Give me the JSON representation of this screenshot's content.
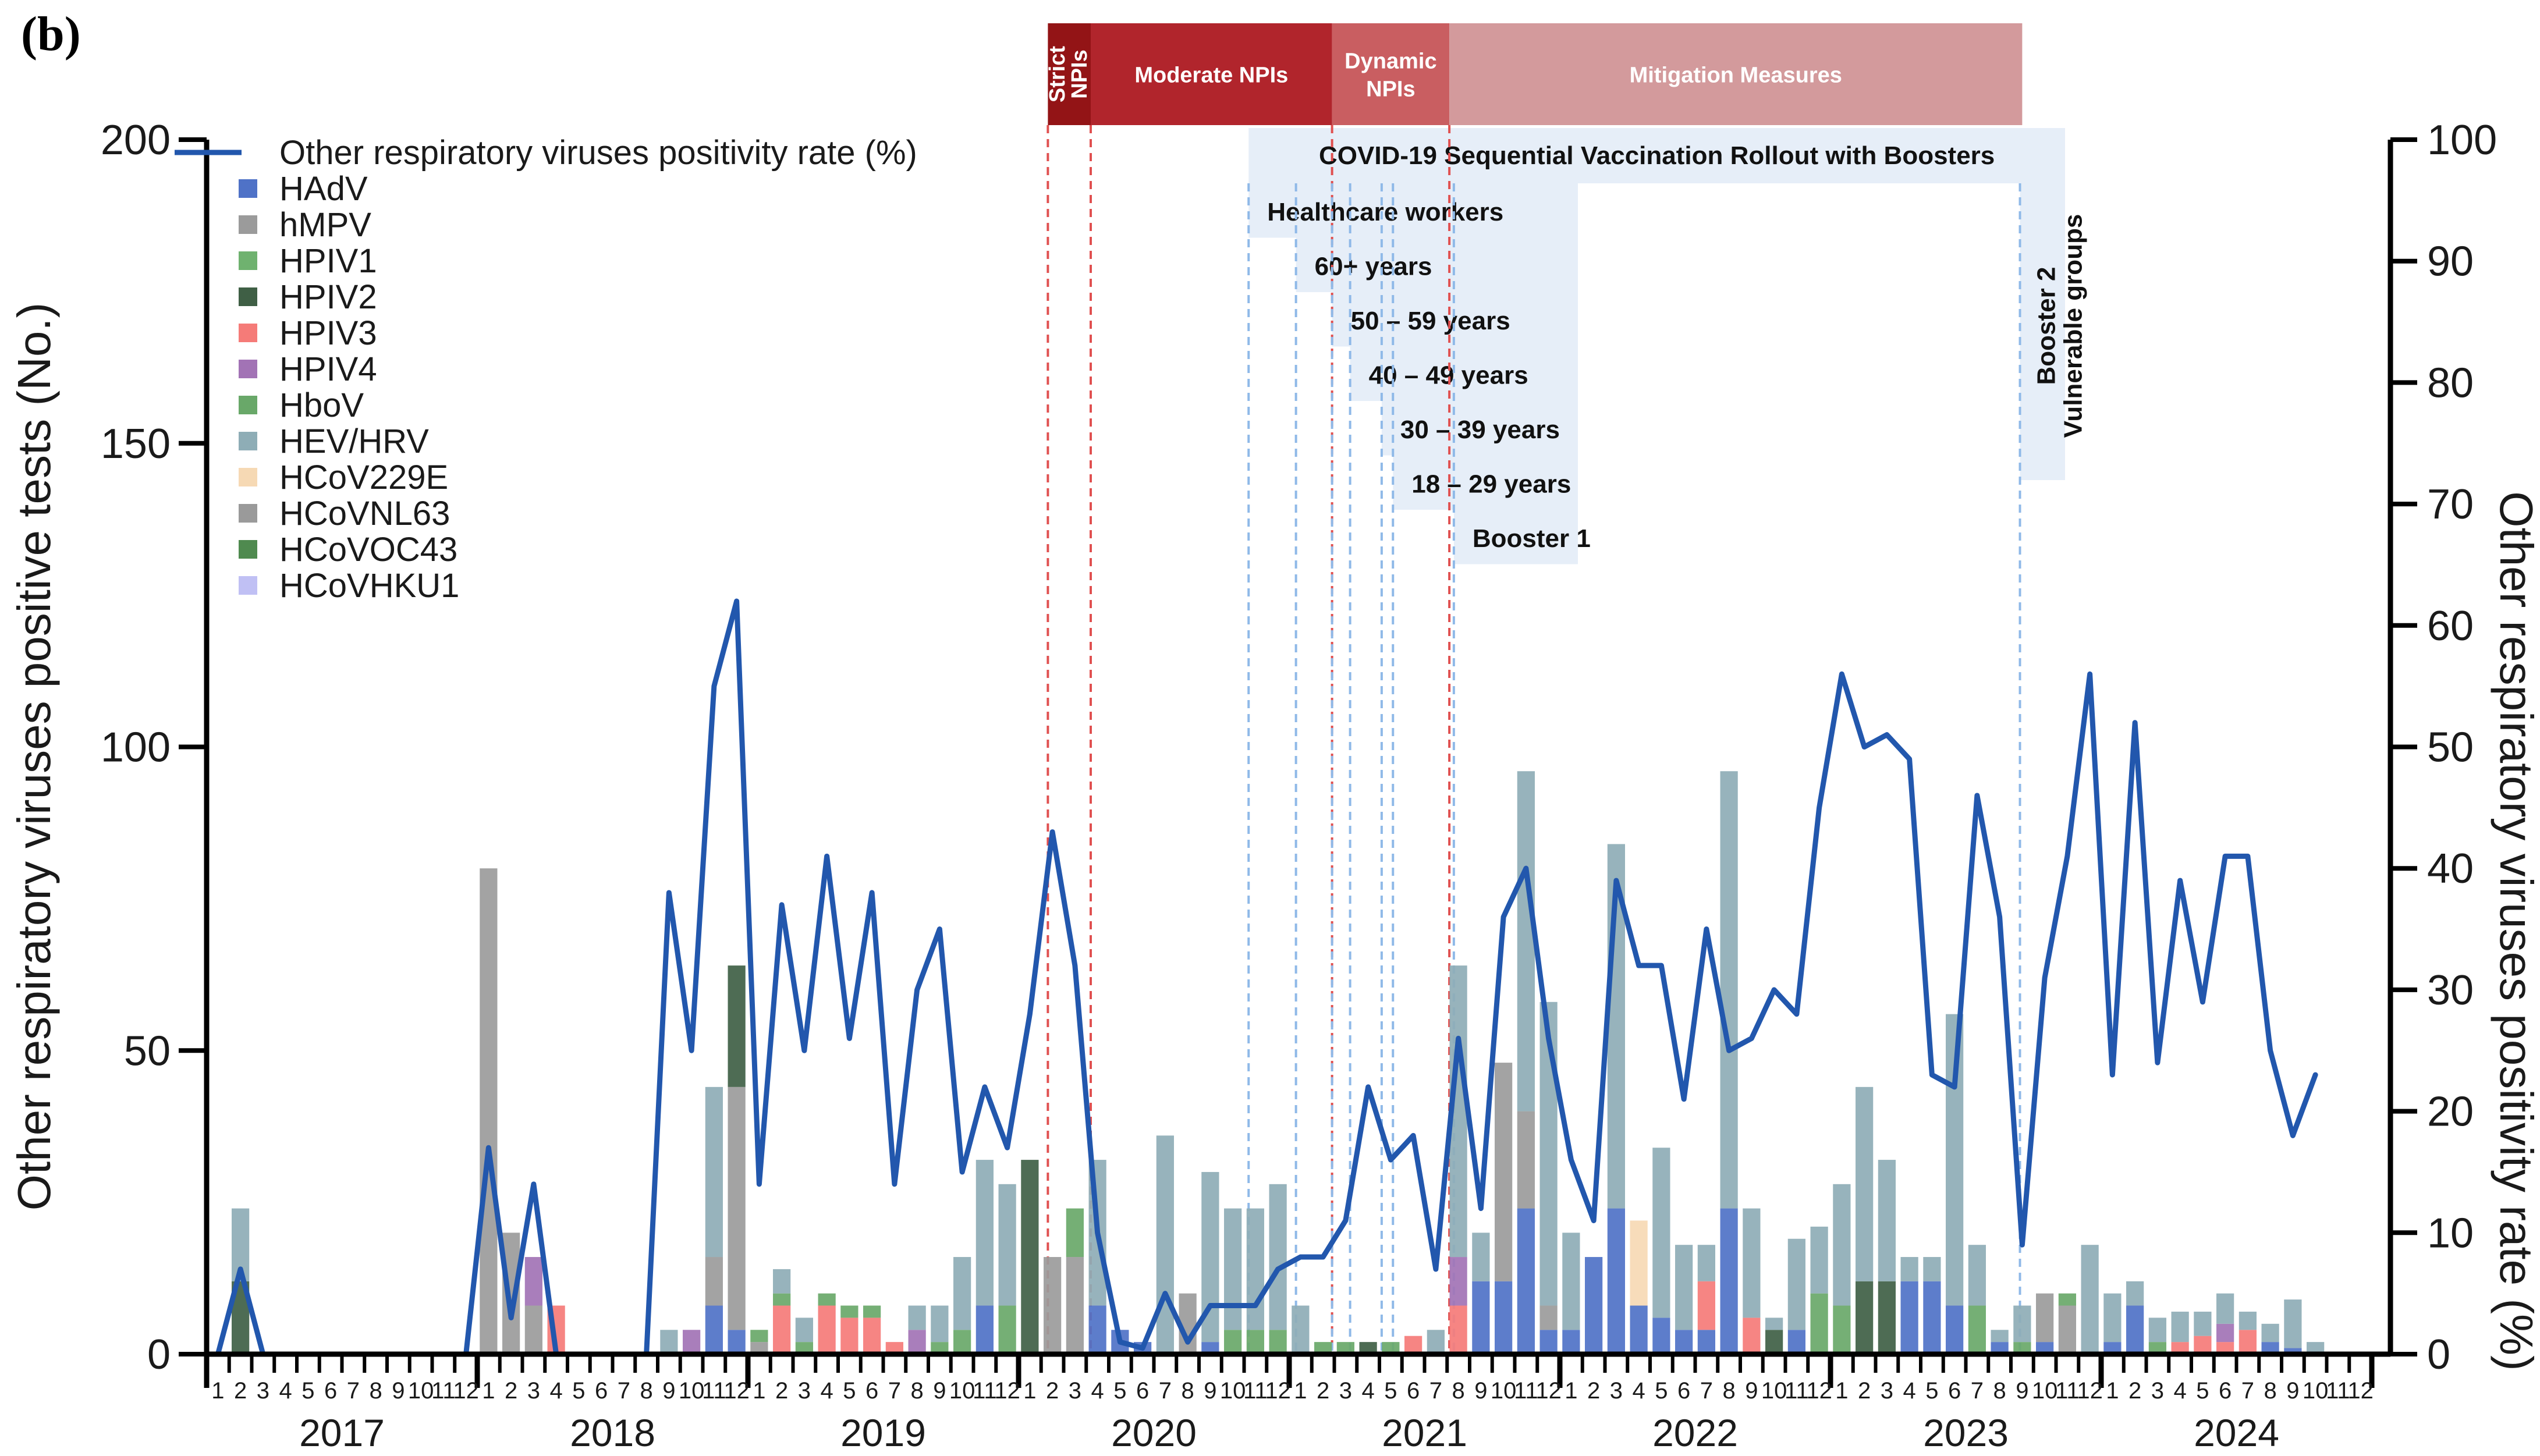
{
  "panel_label": "(b)",
  "colors": {
    "HAdV": "#4f72c7",
    "hMPV": "#9b9b9b",
    "HPIV1": "#6fb26f",
    "HPIV2": "#3f5f45",
    "HPIV3": "#f57b78",
    "HPIV4": "#a273b5",
    "HboV": "#69a869",
    "HEV/HRV": "#8eadb6",
    "HCoV229E": "#f6d9b4",
    "HCoVNL63": "#9a9a9a",
    "HCoVOC43": "#4f8a4f",
    "HCoVHKU1": "#c0c0f4",
    "line": "#2257ad",
    "strict": "#931416",
    "moderate": "#b1252c",
    "dynamic": "#c95e61",
    "mitigation": "#d39a9c",
    "vax_bg": "#e6eef8",
    "vline_red": "#e05050",
    "vline_blue": "#8fb9e8"
  },
  "chart_data": {
    "type": "bar+line",
    "title": "",
    "ylabel": "Other respiratory viruses positive tests (No.)",
    "y2label": "Other respiratory viruses positivity rate (%)",
    "ylim": [
      0,
      200
    ],
    "y2lim": [
      0,
      100
    ],
    "yticks": [
      "0",
      "50",
      "100",
      "150",
      "200"
    ],
    "y2ticks": [
      "0",
      "10",
      "20",
      "30",
      "40",
      "50",
      "60",
      "70",
      "80",
      "90",
      "100"
    ],
    "months_start": "2017-01",
    "month_labels": [
      "1",
      "2",
      "3",
      "4",
      "5",
      "6",
      "7",
      "8",
      "9",
      "10",
      "11",
      "12"
    ],
    "years": [
      "2017",
      "2018",
      "2019",
      "2020",
      "2021",
      "2022",
      "2023",
      "2024"
    ],
    "legend": {
      "line_label": "Other respiratory viruses positivity rate (%)",
      "series": [
        "HAdV",
        "hMPV",
        "HPIV1",
        "HPIV2",
        "HPIV3",
        "HPIV4",
        "HboV",
        "HEV/HRV",
        "HCoV229E",
        "HCoVNL63",
        "HCoVOC43",
        "HCoVHKU1"
      ]
    },
    "bar_totals": [
      0,
      24,
      0,
      0,
      0,
      0,
      0,
      0,
      0,
      0,
      0,
      0,
      80,
      20,
      16,
      8,
      0,
      0,
      0,
      0,
      4,
      4,
      44,
      64,
      4,
      14,
      6,
      10,
      8,
      8,
      2,
      8,
      8,
      16,
      32,
      28,
      32,
      16,
      24,
      32,
      4,
      2,
      36,
      10,
      30,
      24,
      24,
      28,
      8,
      2,
      2,
      2,
      2,
      3,
      4,
      64,
      20,
      48,
      96,
      58,
      20,
      16,
      84,
      22,
      34,
      18,
      18,
      96,
      24,
      6,
      19,
      21,
      28,
      44,
      32,
      16,
      16,
      56,
      18,
      4,
      8,
      10,
      10,
      18,
      10,
      12,
      6,
      7,
      7,
      10,
      7,
      5,
      9,
      2
    ],
    "stacks": [
      {
        "i": 1,
        "seg": {
          "HEV/HRV": 12,
          "HPIV2": 12
        }
      },
      {
        "i": 12,
        "seg": {
          "hMPV": 80
        }
      },
      {
        "i": 13,
        "seg": {
          "hMPV": 20
        }
      },
      {
        "i": 14,
        "seg": {
          "HPIV4": 8,
          "hMPV": 8
        }
      },
      {
        "i": 15,
        "seg": {
          "HPIV3": 8
        }
      },
      {
        "i": 20,
        "seg": {
          "HEV/HRV": 4
        }
      },
      {
        "i": 21,
        "seg": {
          "HPIV4": 4
        }
      },
      {
        "i": 22,
        "seg": {
          "HAdV": 8,
          "hMPV": 8,
          "HEV/HRV": 28
        }
      },
      {
        "i": 23,
        "seg": {
          "HPIV2": 20,
          "HAdV": 4,
          "hMPV": 40
        }
      },
      {
        "i": 24,
        "seg": {
          "HboV": 2,
          "hMPV": 2
        }
      },
      {
        "i": 25,
        "seg": {
          "HboV": 2,
          "HPIV3": 8,
          "HEV/HRV": 4
        }
      },
      {
        "i": 26,
        "seg": {
          "HboV": 2,
          "HEV/HRV": 4
        }
      },
      {
        "i": 27,
        "seg": {
          "HboV": 2,
          "HPIV3": 8
        }
      },
      {
        "i": 28,
        "seg": {
          "HboV": 2,
          "HPIV3": 6
        }
      },
      {
        "i": 29,
        "seg": {
          "HboV": 2,
          "HPIV3": 6
        }
      },
      {
        "i": 30,
        "seg": {
          "HPIV3": 2
        }
      },
      {
        "i": 31,
        "seg": {
          "HPIV4": 4,
          "HEV/HRV": 4
        }
      },
      {
        "i": 32,
        "seg": {
          "HboV": 2,
          "HEV/HRV": 6
        }
      },
      {
        "i": 33,
        "seg": {
          "HboV": 4,
          "HEV/HRV": 12
        }
      },
      {
        "i": 34,
        "seg": {
          "HAdV": 8,
          "HEV/HRV": 24
        }
      },
      {
        "i": 35,
        "seg": {
          "HboV": 8,
          "HEV/HRV": 20
        }
      },
      {
        "i": 36,
        "seg": {
          "HPIV2": 32
        }
      },
      {
        "i": 37,
        "seg": {
          "hMPV": 16
        }
      },
      {
        "i": 38,
        "seg": {
          "HboV": 8,
          "hMPV": 16
        }
      },
      {
        "i": 39,
        "seg": {
          "HAdV": 8,
          "HEV/HRV": 24
        }
      },
      {
        "i": 40,
        "seg": {
          "HAdV": 4
        }
      },
      {
        "i": 41,
        "seg": {
          "HAdV": 2
        }
      },
      {
        "i": 42,
        "seg": {
          "HEV/HRV": 36
        }
      },
      {
        "i": 43,
        "seg": {
          "hMPV": 10
        }
      },
      {
        "i": 44,
        "seg": {
          "HAdV": 2,
          "HEV/HRV": 28
        }
      },
      {
        "i": 45,
        "seg": {
          "HboV": 4,
          "HEV/HRV": 20
        }
      },
      {
        "i": 46,
        "seg": {
          "HboV": 4,
          "HEV/HRV": 20
        }
      },
      {
        "i": 47,
        "seg": {
          "HboV": 4,
          "HEV/HRV": 24
        }
      },
      {
        "i": 48,
        "seg": {
          "HEV/HRV": 8
        }
      },
      {
        "i": 49,
        "seg": {
          "HboV": 2
        }
      },
      {
        "i": 50,
        "seg": {
          "HboV": 2
        }
      },
      {
        "i": 51,
        "seg": {
          "HPIV2": 2
        }
      },
      {
        "i": 52,
        "seg": {
          "HboV": 2
        }
      },
      {
        "i": 53,
        "seg": {
          "HPIV3": 3
        }
      },
      {
        "i": 54,
        "seg": {
          "HEV/HRV": 4
        }
      },
      {
        "i": 55,
        "seg": {
          "HPIV4": 8,
          "HPIV3": 8,
          "HEV/HRV": 48
        }
      },
      {
        "i": 56,
        "seg": {
          "HAdV": 12,
          "HEV/HRV": 8
        }
      },
      {
        "i": 57,
        "seg": {
          "HAdV": 12,
          "hMPV": 36
        }
      },
      {
        "i": 58,
        "seg": {
          "HAdV": 24,
          "hMPV": 16,
          "HEV/HRV": 56
        }
      },
      {
        "i": 59,
        "seg": {
          "HAdV": 4,
          "hMPV": 4,
          "HEV/HRV": 50
        }
      },
      {
        "i": 60,
        "seg": {
          "HAdV": 4,
          "HEV/HRV": 16
        }
      },
      {
        "i": 61,
        "seg": {
          "HAdV": 16
        }
      },
      {
        "i": 62,
        "seg": {
          "HAdV": 24,
          "HEV/HRV": 60
        }
      },
      {
        "i": 63,
        "seg": {
          "HAdV": 8,
          "HCoV229E": 14
        }
      },
      {
        "i": 64,
        "seg": {
          "HAdV": 6,
          "HEV/HRV": 28
        }
      },
      {
        "i": 65,
        "seg": {
          "HAdV": 4,
          "HEV/HRV": 14
        }
      },
      {
        "i": 66,
        "seg": {
          "HAdV": 4,
          "HPIV3": 8,
          "HEV/HRV": 6
        }
      },
      {
        "i": 67,
        "seg": {
          "HAdV": 24,
          "HEV/HRV": 72
        }
      },
      {
        "i": 68,
        "seg": {
          "HPIV3": 6,
          "HEV/HRV": 18
        }
      },
      {
        "i": 69,
        "seg": {
          "HPIV2": 4,
          "HEV/HRV": 2
        }
      },
      {
        "i": 70,
        "seg": {
          "HAdV": 4,
          "HEV/HRV": 15
        }
      },
      {
        "i": 71,
        "seg": {
          "HboV": 10,
          "HEV/HRV": 11
        }
      },
      {
        "i": 72,
        "seg": {
          "HboV": 8,
          "HEV/HRV": 20
        }
      },
      {
        "i": 73,
        "seg": {
          "HPIV2": 12,
          "HEV/HRV": 32
        }
      },
      {
        "i": 74,
        "seg": {
          "HPIV2": 12,
          "HEV/HRV": 20
        }
      },
      {
        "i": 75,
        "seg": {
          "HAdV": 12,
          "HEV/HRV": 4
        }
      },
      {
        "i": 76,
        "seg": {
          "HAdV": 12,
          "HEV/HRV": 4
        }
      },
      {
        "i": 77,
        "seg": {
          "HAdV": 8,
          "HEV/HRV": 48
        }
      },
      {
        "i": 78,
        "seg": {
          "HboV": 8,
          "HEV/HRV": 10
        }
      },
      {
        "i": 79,
        "seg": {
          "HAdV": 2,
          "HEV/HRV": 2
        }
      },
      {
        "i": 80,
        "seg": {
          "HboV": 2,
          "HEV/HRV": 6
        }
      },
      {
        "i": 81,
        "seg": {
          "HAdV": 2,
          "hMPV": 8
        }
      },
      {
        "i": 82,
        "seg": {
          "HboV": 2,
          "hMPV": 8
        }
      },
      {
        "i": 83,
        "seg": {
          "HEV/HRV": 18
        }
      },
      {
        "i": 84,
        "seg": {
          "HAdV": 2,
          "HEV/HRV": 8
        }
      },
      {
        "i": 85,
        "seg": {
          "HAdV": 8,
          "HEV/HRV": 4
        }
      },
      {
        "i": 86,
        "seg": {
          "HboV": 2,
          "HEV/HRV": 4
        }
      },
      {
        "i": 87,
        "seg": {
          "HPIV3": 2,
          "HEV/HRV": 5
        }
      },
      {
        "i": 88,
        "seg": {
          "HPIV3": 3,
          "HEV/HRV": 4
        }
      },
      {
        "i": 89,
        "seg": {
          "HPIV4": 3,
          "HPIV3": 2,
          "HEV/HRV": 5
        }
      },
      {
        "i": 90,
        "seg": {
          "HPIV3": 4,
          "HEV/HRV": 3
        }
      },
      {
        "i": 91,
        "seg": {
          "HAdV": 2,
          "HEV/HRV": 3
        }
      },
      {
        "i": 92,
        "seg": {
          "HAdV": 1,
          "HEV/HRV": 8
        }
      },
      {
        "i": 93,
        "seg": {
          "HEV/HRV": 2
        }
      }
    ],
    "positivity_rate": [
      0,
      7,
      0,
      0,
      0,
      0,
      0,
      0,
      0,
      0,
      0,
      0,
      17,
      3,
      14,
      0,
      0,
      0,
      0,
      0,
      38,
      25,
      55,
      62,
      14,
      37,
      25,
      41,
      26,
      38,
      14,
      30,
      35,
      15,
      22,
      17,
      28,
      43,
      32,
      10,
      1,
      0.5,
      5,
      1,
      4,
      4,
      4,
      7,
      8,
      8,
      11,
      22,
      16,
      18,
      7,
      26,
      12,
      36,
      40,
      26,
      16,
      11,
      39,
      32,
      32,
      21,
      35,
      25,
      26,
      30,
      28,
      45,
      56,
      50,
      51,
      49,
      23,
      22,
      46,
      36,
      9,
      31,
      41,
      56,
      23,
      52,
      24,
      39,
      29,
      41,
      41,
      25,
      18,
      23
    ],
    "phases": [
      {
        "label": "Strict NPIs",
        "start": 37.3,
        "end": 39.2
      },
      {
        "label": "Moderate NPIs",
        "start": 39.2,
        "end": 49.9
      },
      {
        "label": "Dynamic NPIs",
        "start": 49.9,
        "end": 55.1
      },
      {
        "label": "Mitigation Measures",
        "start": 55.1,
        "end": 80.5
      }
    ],
    "vaccination": {
      "title": "COVID-19 Sequential Vaccination Rollout with Boosters",
      "groups": [
        "Healthcare workers",
        "60+ years",
        "50 – 59 years",
        "40 – 49 years",
        "30 – 39 years",
        "18 – 29 years",
        "Booster 1"
      ],
      "booster2_line1": "Booster 2",
      "booster2_line2": "Vulnerable groups"
    }
  }
}
